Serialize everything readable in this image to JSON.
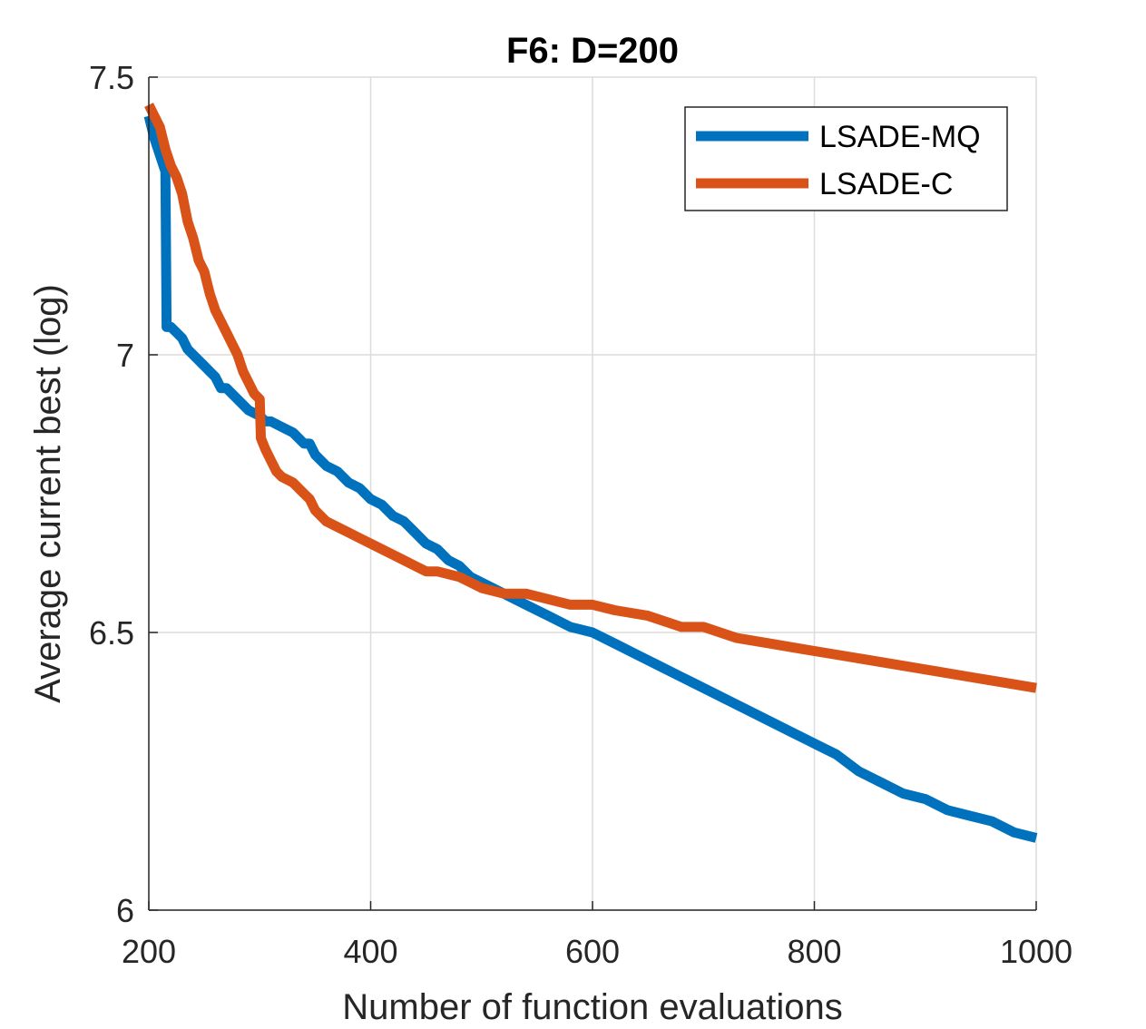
{
  "chart_data": {
    "type": "line",
    "title": "F6: D=200",
    "xlabel": "Number of function evaluations",
    "ylabel": "Average current best (log)",
    "xlim": [
      200,
      1000
    ],
    "ylim": [
      6,
      7.5
    ],
    "xticks": [
      200,
      400,
      600,
      800,
      1000
    ],
    "yticks": [
      6,
      6.5,
      7,
      7.5
    ],
    "xtick_labels": [
      "200",
      "400",
      "600",
      "800",
      "1000"
    ],
    "ytick_labels": [
      "6",
      "6.5",
      "7",
      "7.5"
    ],
    "grid": true,
    "legend_position": "top-right",
    "series": [
      {
        "name": "LSADE-MQ",
        "color": "#0072BD",
        "x": [
          200,
          205,
          210,
          215,
          216,
          220,
          225,
          230,
          235,
          240,
          250,
          255,
          260,
          265,
          270,
          280,
          290,
          300,
          305,
          310,
          320,
          330,
          340,
          345,
          350,
          360,
          370,
          380,
          390,
          400,
          410,
          420,
          430,
          440,
          450,
          460,
          470,
          480,
          490,
          500,
          520,
          540,
          560,
          580,
          600,
          620,
          640,
          660,
          680,
          700,
          720,
          740,
          760,
          780,
          800,
          820,
          840,
          860,
          880,
          900,
          920,
          940,
          960,
          980,
          1000
        ],
        "y": [
          7.43,
          7.39,
          7.36,
          7.33,
          7.05,
          7.05,
          7.04,
          7.03,
          7.01,
          7.0,
          6.98,
          6.97,
          6.96,
          6.94,
          6.94,
          6.92,
          6.9,
          6.89,
          6.88,
          6.88,
          6.87,
          6.86,
          6.84,
          6.84,
          6.82,
          6.8,
          6.79,
          6.77,
          6.76,
          6.74,
          6.73,
          6.71,
          6.7,
          6.68,
          6.66,
          6.65,
          6.63,
          6.62,
          6.6,
          6.59,
          6.57,
          6.55,
          6.53,
          6.51,
          6.5,
          6.48,
          6.46,
          6.44,
          6.42,
          6.4,
          6.38,
          6.36,
          6.34,
          6.32,
          6.3,
          6.28,
          6.25,
          6.23,
          6.21,
          6.2,
          6.18,
          6.17,
          6.16,
          6.14,
          6.13
        ]
      },
      {
        "name": "LSADE-C",
        "color": "#D95319",
        "x": [
          200,
          205,
          210,
          215,
          220,
          225,
          230,
          235,
          240,
          245,
          250,
          255,
          260,
          265,
          270,
          275,
          280,
          285,
          290,
          295,
          300,
          301,
          305,
          310,
          315,
          320,
          330,
          340,
          345,
          350,
          360,
          370,
          380,
          390,
          400,
          410,
          420,
          430,
          440,
          450,
          460,
          480,
          500,
          520,
          540,
          560,
          580,
          600,
          620,
          650,
          680,
          700,
          730,
          760,
          790,
          820,
          850,
          880,
          910,
          940,
          970,
          1000
        ],
        "y": [
          7.45,
          7.43,
          7.41,
          7.37,
          7.34,
          7.32,
          7.29,
          7.24,
          7.21,
          7.17,
          7.15,
          7.11,
          7.08,
          7.06,
          7.04,
          7.02,
          7.0,
          6.97,
          6.95,
          6.93,
          6.92,
          6.85,
          6.83,
          6.81,
          6.79,
          6.78,
          6.77,
          6.75,
          6.74,
          6.72,
          6.7,
          6.69,
          6.68,
          6.67,
          6.66,
          6.65,
          6.64,
          6.63,
          6.62,
          6.61,
          6.61,
          6.6,
          6.58,
          6.57,
          6.57,
          6.56,
          6.55,
          6.55,
          6.54,
          6.53,
          6.51,
          6.51,
          6.49,
          6.48,
          6.47,
          6.46,
          6.45,
          6.44,
          6.43,
          6.42,
          6.41,
          6.4
        ]
      }
    ]
  }
}
